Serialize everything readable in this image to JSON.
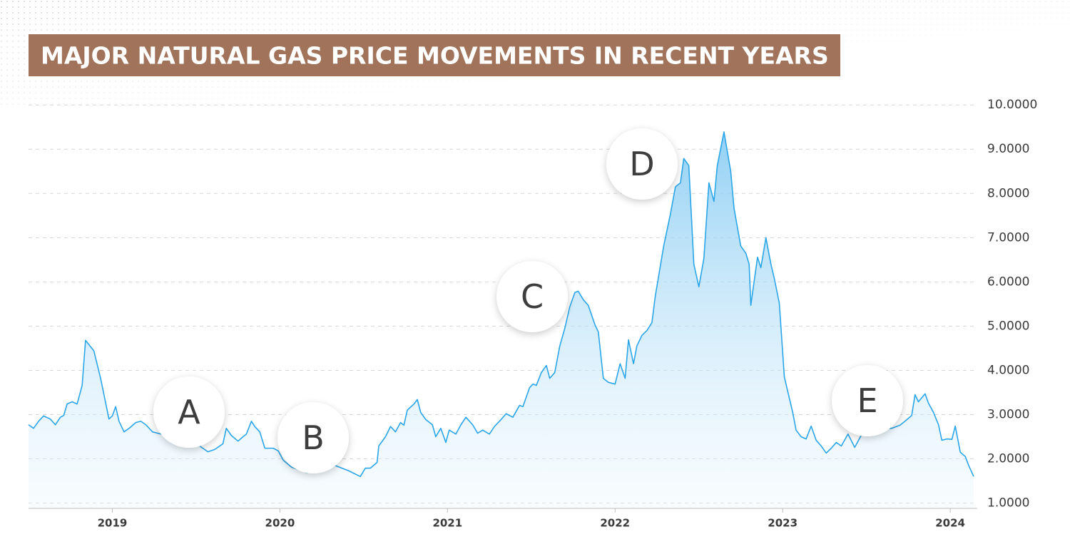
{
  "chart_data": {
    "type": "area",
    "title": "MAJOR NATURAL GAS PRICE MOVEMENTS IN RECENT YEARS",
    "color": "#2aa6e8",
    "annotations": [
      "A",
      "B",
      "C",
      "D",
      "E"
    ],
    "xlim": [
      2018.5,
      2024.14
    ],
    "xticks": [
      2019,
      2020,
      2021,
      2022,
      2023,
      2024
    ],
    "ylim": [
      0.88,
      10.1
    ],
    "yticks": [
      {
        "value": 1,
        "label": "1.0000"
      },
      {
        "value": 2,
        "label": "2.0000"
      },
      {
        "value": 3,
        "label": "3.0000"
      },
      {
        "value": 4,
        "label": "4.0000"
      },
      {
        "value": 5,
        "label": "5.0000"
      },
      {
        "value": 6,
        "label": "6.0000"
      },
      {
        "value": 7,
        "label": "7.0000"
      },
      {
        "value": 8,
        "label": "8.0000"
      },
      {
        "value": 9,
        "label": "9.0000"
      },
      {
        "value": 10,
        "label": "10.0000"
      }
    ],
    "grid": true,
    "x": [
      2018.5,
      2018.53,
      2018.56,
      2018.59,
      2018.63,
      2018.66,
      2018.69,
      2018.71,
      2018.73,
      2018.76,
      2018.79,
      2018.82,
      2018.84,
      2018.89,
      2018.93,
      2018.98,
      2019.0,
      2019.02,
      2019.04,
      2019.07,
      2019.1,
      2019.14,
      2019.17,
      2019.2,
      2019.24,
      2019.29,
      2019.35,
      2019.41,
      2019.48,
      2019.54,
      2019.57,
      2019.61,
      2019.66,
      2019.68,
      2019.71,
      2019.75,
      2019.78,
      2019.8,
      2019.83,
      2019.85,
      2019.88,
      2019.91,
      2019.96,
      2019.99,
      2020.02,
      2020.07,
      2020.16,
      2020.24,
      2020.33,
      2020.41,
      2020.48,
      2020.51,
      2020.54,
      2020.58,
      2020.59,
      2020.63,
      2020.66,
      2020.69,
      2020.72,
      2020.74,
      2020.76,
      2020.8,
      2020.82,
      2020.84,
      2020.87,
      2020.91,
      2020.93,
      2020.96,
      2020.99,
      2021.01,
      2021.05,
      2021.08,
      2021.11,
      2021.15,
      2021.18,
      2021.21,
      2021.25,
      2021.28,
      2021.32,
      2021.35,
      2021.39,
      2021.43,
      2021.45,
      2021.49,
      2021.51,
      2021.53,
      2021.56,
      2021.59,
      2021.61,
      2021.64,
      2021.67,
      2021.7,
      2021.73,
      2021.76,
      2021.78,
      2021.81,
      2021.84,
      2021.88,
      2021.9,
      2021.93,
      2021.96,
      2022.0,
      2022.03,
      2022.06,
      2022.08,
      2022.11,
      2022.13,
      2022.16,
      2022.19,
      2022.22,
      2022.24,
      2022.29,
      2022.33,
      2022.36,
      2022.39,
      2022.41,
      2022.44,
      2022.47,
      2022.5,
      2022.53,
      2022.56,
      2022.59,
      2022.61,
      2022.65,
      2022.69,
      2022.71,
      2022.75,
      2022.78,
      2022.8,
      2022.81,
      2022.85,
      2022.87,
      2022.9,
      2022.93,
      2022.95,
      2022.98,
      2023.01,
      2023.06,
      2023.08,
      2023.11,
      2023.14,
      2023.17,
      2023.2,
      2023.23,
      2023.26,
      2023.29,
      2023.32,
      2023.35,
      2023.39,
      2023.43,
      2023.48,
      2023.56,
      2023.65,
      2023.7,
      2023.73,
      2023.77,
      2023.79,
      2023.81,
      2023.85,
      2023.87,
      2023.9,
      2023.93,
      2023.95,
      2023.98,
      2024.01,
      2024.03,
      2024.06,
      2024.09,
      2024.11,
      2024.14
    ],
    "values": [
      2.77,
      2.69,
      2.85,
      2.97,
      2.9,
      2.77,
      2.94,
      2.98,
      3.24,
      3.29,
      3.24,
      3.66,
      4.68,
      4.44,
      3.82,
      2.9,
      2.97,
      3.18,
      2.85,
      2.61,
      2.69,
      2.82,
      2.85,
      2.77,
      2.61,
      2.56,
      2.5,
      2.45,
      2.4,
      2.24,
      2.16,
      2.21,
      2.34,
      2.69,
      2.53,
      2.4,
      2.5,
      2.56,
      2.85,
      2.73,
      2.61,
      2.24,
      2.24,
      2.18,
      1.97,
      1.81,
      1.69,
      1.73,
      1.85,
      1.73,
      1.6,
      1.79,
      1.79,
      1.92,
      2.29,
      2.5,
      2.73,
      2.61,
      2.82,
      2.76,
      3.1,
      3.24,
      3.34,
      3.05,
      2.89,
      2.77,
      2.5,
      2.69,
      2.37,
      2.65,
      2.56,
      2.77,
      2.94,
      2.77,
      2.58,
      2.65,
      2.56,
      2.73,
      2.89,
      3.02,
      2.94,
      3.21,
      3.18,
      3.61,
      3.69,
      3.66,
      3.95,
      4.11,
      3.82,
      3.95,
      4.55,
      4.95,
      5.44,
      5.76,
      5.79,
      5.6,
      5.47,
      5.03,
      4.87,
      3.82,
      3.73,
      3.69,
      4.15,
      3.82,
      4.69,
      4.15,
      4.55,
      4.79,
      4.9,
      5.08,
      5.68,
      6.81,
      7.53,
      8.15,
      8.24,
      8.79,
      8.63,
      6.4,
      5.89,
      6.53,
      8.24,
      7.82,
      8.63,
      9.39,
      8.5,
      7.66,
      6.81,
      6.65,
      6.4,
      5.47,
      6.56,
      6.32,
      7.0,
      6.4,
      6.08,
      5.52,
      3.85,
      3.05,
      2.65,
      2.5,
      2.45,
      2.74,
      2.42,
      2.29,
      2.13,
      2.24,
      2.37,
      2.29,
      2.56,
      2.26,
      2.61,
      2.66,
      2.69,
      2.76,
      2.85,
      2.98,
      3.45,
      3.29,
      3.47,
      3.26,
      3.05,
      2.77,
      2.42,
      2.45,
      2.44,
      2.74,
      2.15,
      2.05,
      1.85,
      1.6
    ]
  }
}
